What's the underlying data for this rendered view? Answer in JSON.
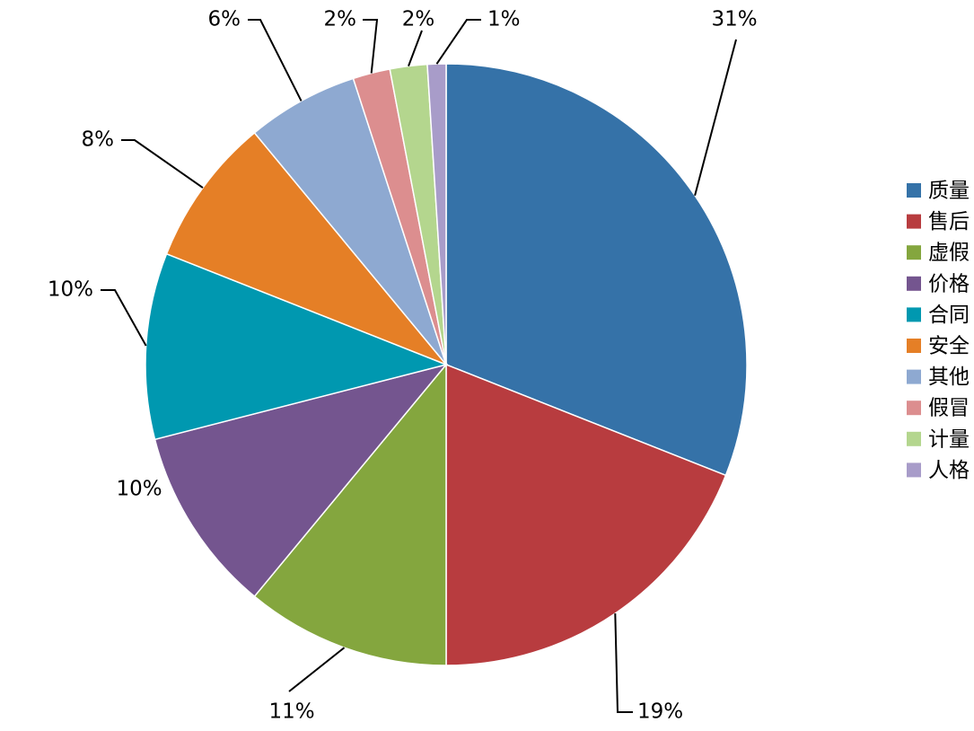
{
  "chart_data": {
    "type": "pie",
    "categories": [
      "质量",
      "售后",
      "虚假",
      "价格",
      "合同",
      "安全",
      "其他",
      "假冒",
      "计量",
      "人格"
    ],
    "values": [
      31,
      19,
      11,
      10,
      10,
      8,
      6,
      2,
      2,
      1
    ],
    "value_labels": [
      "31%",
      "19%",
      "11%",
      "10%",
      "10%",
      "8%",
      "6%",
      "2%",
      "2%",
      "1%"
    ],
    "colors": [
      "#3572a8",
      "#b83c3f",
      "#84a63e",
      "#74558f",
      "#0098b0",
      "#e57f26",
      "#8ea9d1",
      "#dc8e8f",
      "#b4d68e",
      "#a89cc9"
    ],
    "legend": "right"
  }
}
